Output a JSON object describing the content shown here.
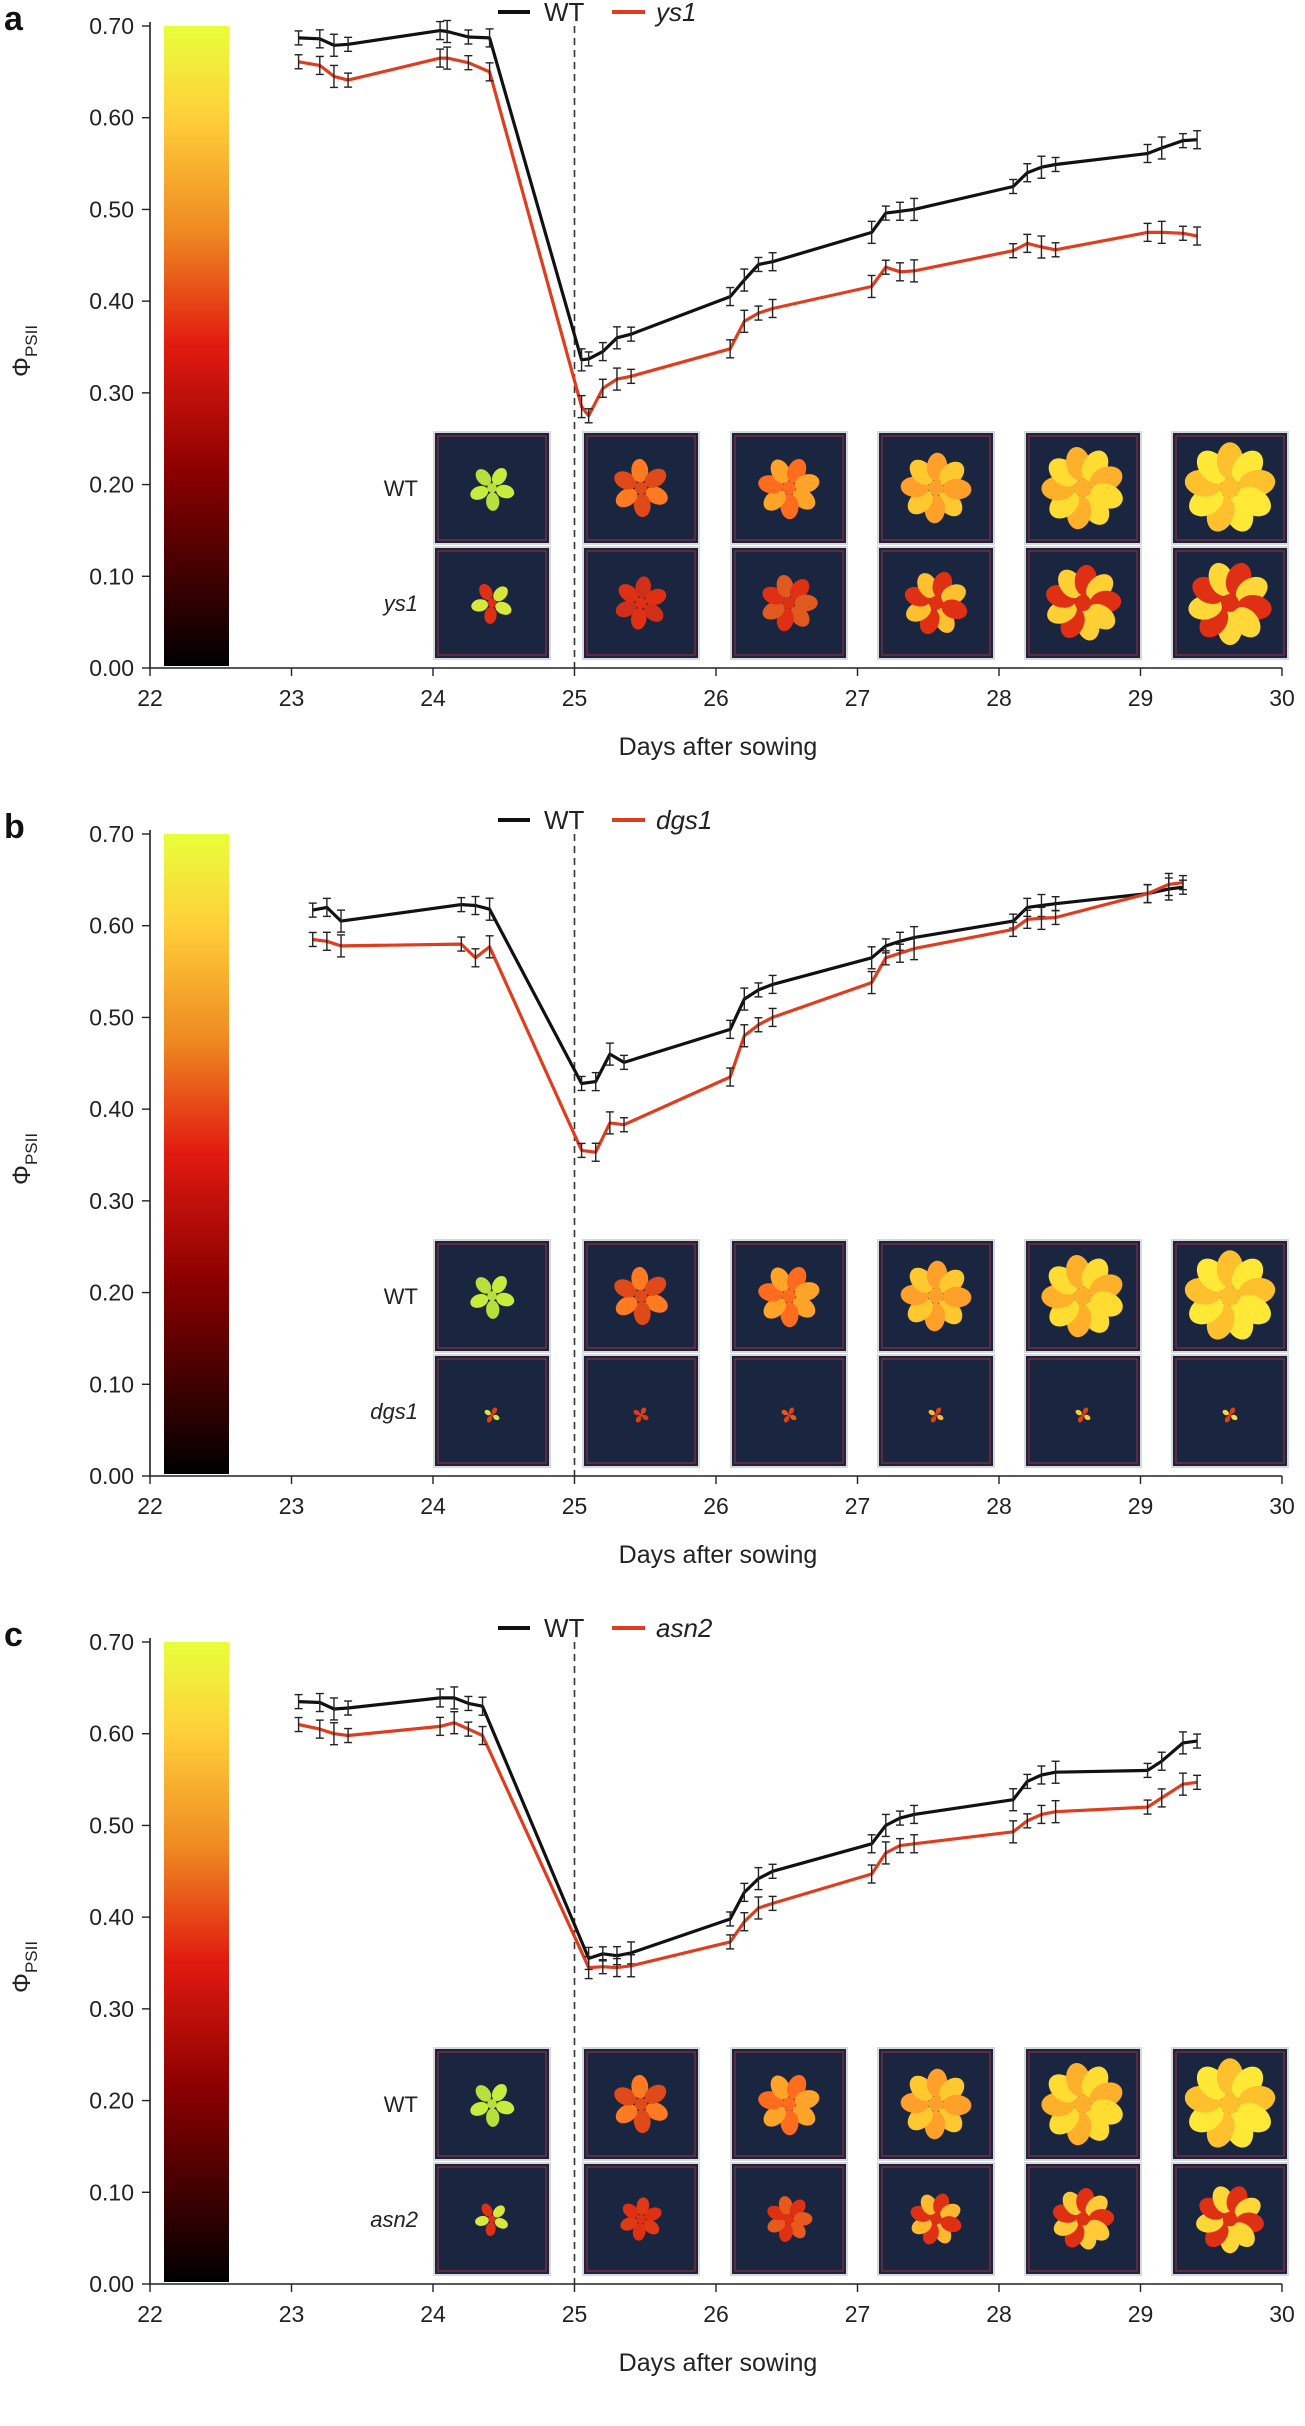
{
  "chart_data": [
    {
      "type": "line",
      "panel_label": "a",
      "xlabel": "Days after sowing",
      "ylabel": "Φ",
      "ylabel_sub": "PSII",
      "xlim": [
        22,
        30
      ],
      "ylim": [
        0,
        0.7
      ],
      "xticks": [
        "22",
        "23",
        "24",
        "25",
        "26",
        "27",
        "28",
        "29",
        "30"
      ],
      "yticks": [
        "0.00",
        "0.10",
        "0.20",
        "0.30",
        "0.40",
        "0.50",
        "0.60",
        "0.70"
      ],
      "vline_x": 25,
      "legend": [
        "WT",
        "ys1"
      ],
      "series": [
        {
          "name": "WT",
          "color": "#111111",
          "x": [
            23.05,
            23.2,
            23.3,
            23.4,
            24.05,
            24.1,
            24.25,
            24.4,
            25.05,
            25.1,
            25.2,
            25.3,
            25.4,
            26.1,
            26.2,
            26.3,
            26.4,
            27.1,
            27.2,
            27.3,
            27.4,
            28.1,
            28.2,
            28.3,
            28.4,
            29.05,
            29.15,
            29.3,
            29.4
          ],
          "y": [
            0.687,
            0.686,
            0.679,
            0.68,
            0.695,
            0.694,
            0.688,
            0.687,
            0.336,
            0.337,
            0.345,
            0.36,
            0.364,
            0.405,
            0.423,
            0.44,
            0.443,
            0.475,
            0.496,
            0.498,
            0.5,
            0.525,
            0.54,
            0.546,
            0.549,
            0.561,
            0.567,
            0.575,
            0.576
          ]
        },
        {
          "name": "ys1",
          "color": "#e03c1e",
          "x": [
            23.05,
            23.2,
            23.3,
            23.4,
            24.05,
            24.1,
            24.25,
            24.4,
            25.05,
            25.1,
            25.2,
            25.3,
            25.4,
            26.1,
            26.2,
            26.3,
            26.4,
            27.1,
            27.2,
            27.3,
            27.4,
            28.1,
            28.2,
            28.3,
            28.4,
            29.05,
            29.15,
            29.3,
            29.4
          ],
          "y": [
            0.661,
            0.657,
            0.645,
            0.641,
            0.665,
            0.665,
            0.66,
            0.65,
            0.285,
            0.275,
            0.305,
            0.315,
            0.318,
            0.348,
            0.378,
            0.387,
            0.392,
            0.416,
            0.437,
            0.432,
            0.433,
            0.455,
            0.463,
            0.459,
            0.456,
            0.475,
            0.475,
            0.474,
            0.471
          ]
        }
      ],
      "images_row_labels": [
        "WT",
        "ys1"
      ]
    },
    {
      "type": "line",
      "panel_label": "b",
      "xlabel": "Days after sowing",
      "ylabel": "Φ",
      "ylabel_sub": "PSII",
      "xlim": [
        22,
        30
      ],
      "ylim": [
        0,
        0.7
      ],
      "xticks": [
        "22",
        "23",
        "24",
        "25",
        "26",
        "27",
        "28",
        "29",
        "30"
      ],
      "yticks": [
        "0.00",
        "0.10",
        "0.20",
        "0.30",
        "0.40",
        "0.50",
        "0.60",
        "0.70"
      ],
      "vline_x": 25,
      "legend": [
        "WT",
        "dgs1"
      ],
      "series": [
        {
          "name": "WT",
          "color": "#111111",
          "x": [
            23.15,
            23.25,
            23.35,
            24.2,
            24.3,
            24.4,
            25.05,
            25.15,
            25.25,
            25.35,
            26.1,
            26.2,
            26.3,
            26.4,
            27.1,
            27.2,
            27.3,
            27.4,
            28.1,
            28.2,
            28.3,
            28.4,
            29.05,
            29.2,
            29.3
          ],
          "y": [
            0.617,
            0.62,
            0.605,
            0.623,
            0.622,
            0.618,
            0.428,
            0.43,
            0.46,
            0.451,
            0.487,
            0.52,
            0.53,
            0.536,
            0.565,
            0.578,
            0.583,
            0.587,
            0.605,
            0.62,
            0.622,
            0.624,
            0.635,
            0.64,
            0.642
          ]
        },
        {
          "name": "dgs1",
          "color": "#e03c1e",
          "x": [
            23.15,
            23.25,
            23.35,
            24.2,
            24.3,
            24.4,
            25.05,
            25.15,
            25.25,
            25.35,
            26.1,
            26.2,
            26.3,
            26.4,
            27.1,
            27.2,
            27.3,
            27.4,
            28.1,
            28.2,
            28.3,
            28.4,
            29.05,
            29.2,
            29.3
          ],
          "y": [
            0.585,
            0.583,
            0.578,
            0.58,
            0.565,
            0.577,
            0.355,
            0.353,
            0.385,
            0.383,
            0.435,
            0.48,
            0.492,
            0.5,
            0.538,
            0.565,
            0.57,
            0.575,
            0.596,
            0.607,
            0.608,
            0.609,
            0.635,
            0.645,
            0.647
          ]
        }
      ],
      "images_row_labels": [
        "WT",
        "dgs1"
      ]
    },
    {
      "type": "line",
      "panel_label": "c",
      "xlabel": "Days after sowing",
      "ylabel": "Φ",
      "ylabel_sub": "PSII",
      "xlim": [
        22,
        30
      ],
      "ylim": [
        0,
        0.7
      ],
      "xticks": [
        "22",
        "23",
        "24",
        "25",
        "26",
        "27",
        "28",
        "29",
        "30"
      ],
      "yticks": [
        "0.00",
        "0.10",
        "0.20",
        "0.30",
        "0.40",
        "0.50",
        "0.60",
        "0.70"
      ],
      "vline_x": 25,
      "legend": [
        "WT",
        "asn2"
      ],
      "series": [
        {
          "name": "WT",
          "color": "#111111",
          "x": [
            23.05,
            23.2,
            23.3,
            23.4,
            24.05,
            24.15,
            24.25,
            24.35,
            25.1,
            25.2,
            25.3,
            25.4,
            26.1,
            26.2,
            26.3,
            26.4,
            27.1,
            27.2,
            27.3,
            27.4,
            28.1,
            28.2,
            28.3,
            28.4,
            29.05,
            29.15,
            29.3,
            29.4
          ],
          "y": [
            0.635,
            0.634,
            0.627,
            0.628,
            0.639,
            0.639,
            0.633,
            0.63,
            0.355,
            0.36,
            0.358,
            0.361,
            0.398,
            0.427,
            0.442,
            0.45,
            0.48,
            0.5,
            0.508,
            0.512,
            0.528,
            0.548,
            0.555,
            0.558,
            0.56,
            0.57,
            0.59,
            0.592
          ]
        },
        {
          "name": "asn2",
          "color": "#e03c1e",
          "x": [
            23.05,
            23.2,
            23.3,
            23.4,
            24.05,
            24.15,
            24.25,
            24.35,
            25.1,
            25.2,
            25.3,
            25.4,
            26.1,
            26.2,
            26.3,
            26.4,
            27.1,
            27.2,
            27.3,
            27.4,
            28.1,
            28.2,
            28.3,
            28.4,
            29.05,
            29.15,
            29.3,
            29.4
          ],
          "y": [
            0.61,
            0.605,
            0.6,
            0.598,
            0.608,
            0.612,
            0.605,
            0.598,
            0.345,
            0.346,
            0.345,
            0.347,
            0.373,
            0.395,
            0.41,
            0.415,
            0.447,
            0.47,
            0.478,
            0.48,
            0.493,
            0.505,
            0.512,
            0.515,
            0.52,
            0.53,
            0.545,
            0.547
          ]
        }
      ],
      "images_row_labels": [
        "WT",
        "asn2"
      ]
    }
  ]
}
